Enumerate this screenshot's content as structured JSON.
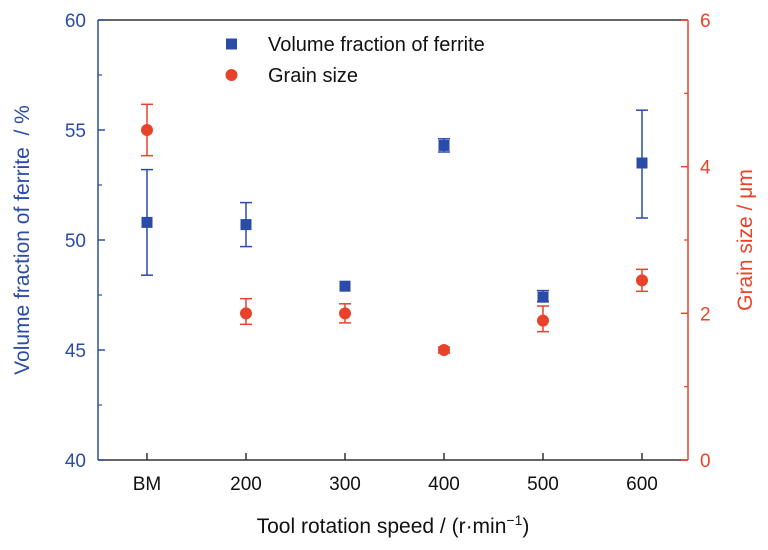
{
  "chart_data": {
    "type": "scatter",
    "categories": [
      "BM",
      "200",
      "300",
      "400",
      "500",
      "600"
    ],
    "xlabel": "Tool rotation speed / (r·min",
    "xlabel_sup": "−1",
    "xlabel_end": ")",
    "ylabel_left": "Volume fraction of ferrite  / %",
    "ylabel_right": "Grain size / μm",
    "ylim_left": [
      40,
      60
    ],
    "yticks_left": [
      "40",
      "45",
      "50",
      "55",
      "60"
    ],
    "ylim_right": [
      0,
      6
    ],
    "yticks_right": [
      "0",
      "2",
      "4",
      "6"
    ],
    "legend_position": "top-center",
    "colors": {
      "ferrite": "#2B4BA8",
      "grain": "#E8432A"
    },
    "series": [
      {
        "name": "Volume fraction of ferrite",
        "axis": "left",
        "marker": "square",
        "values": [
          50.8,
          50.7,
          47.9,
          54.3,
          47.4,
          53.5
        ],
        "err_low": [
          48.4,
          49.7,
          47.9,
          54.0,
          47.2,
          51.0
        ],
        "err_high": [
          53.2,
          51.7,
          47.9,
          54.6,
          47.7,
          55.9
        ]
      },
      {
        "name": "Grain size",
        "axis": "right",
        "marker": "circle",
        "values": [
          4.5,
          2.0,
          2.0,
          1.5,
          1.9,
          2.45
        ],
        "err_low": [
          4.15,
          1.85,
          1.87,
          1.46,
          1.75,
          2.3
        ],
        "err_high": [
          4.85,
          2.2,
          2.13,
          1.54,
          2.1,
          2.6
        ]
      }
    ]
  }
}
